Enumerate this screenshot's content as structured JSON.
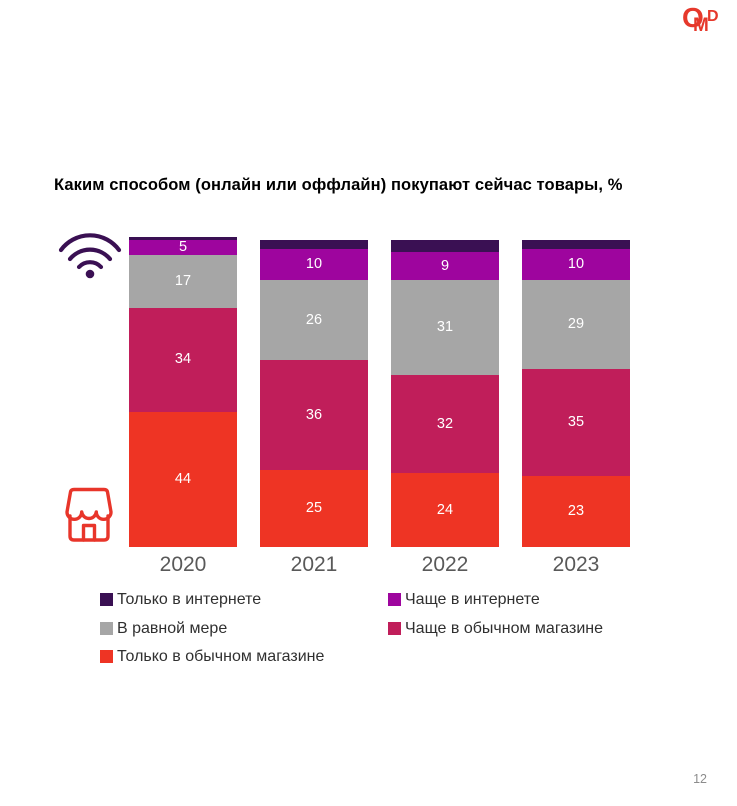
{
  "title": "Каким способом (онлайн или оффлайн) покупают сейчас товары, %",
  "logo": {
    "letters": [
      "O",
      "M",
      "D"
    ],
    "color": "#e6382b"
  },
  "icons": {
    "online": "wifi-icon",
    "offline": "storefront-icon",
    "wifi_color": "#3a1053",
    "store_color": "#e8352a"
  },
  "chart_data": {
    "type": "bar",
    "stacked": true,
    "unit": "%",
    "title": "Каким способом (онлайн или оффлайн) покупают сейчас товары, %",
    "categories": [
      "2020",
      "2021",
      "2022",
      "2023"
    ],
    "series": [
      {
        "name": "Только в интернете",
        "color": "#3a1053",
        "values": [
          1,
          3,
          4,
          3
        ],
        "labels_shown": false
      },
      {
        "name": "Чаще в интернете",
        "color": "#9e059e",
        "values": [
          5,
          10,
          9,
          10
        ],
        "labels_shown": true
      },
      {
        "name": "В равной мере",
        "color": "#a6a6a6",
        "values": [
          17,
          26,
          31,
          29
        ],
        "labels_shown": true
      },
      {
        "name": "Чаще в обычном магазине",
        "color": "#c01e5a",
        "values": [
          34,
          36,
          32,
          35
        ],
        "labels_shown": true
      },
      {
        "name": "Только в обычном магазине",
        "color": "#ee3424",
        "values": [
          44,
          25,
          24,
          23
        ],
        "labels_shown": true
      }
    ],
    "ylim": [
      0,
      100
    ],
    "grid": false,
    "legend_position": "bottom"
  },
  "page": {
    "number": "12"
  }
}
